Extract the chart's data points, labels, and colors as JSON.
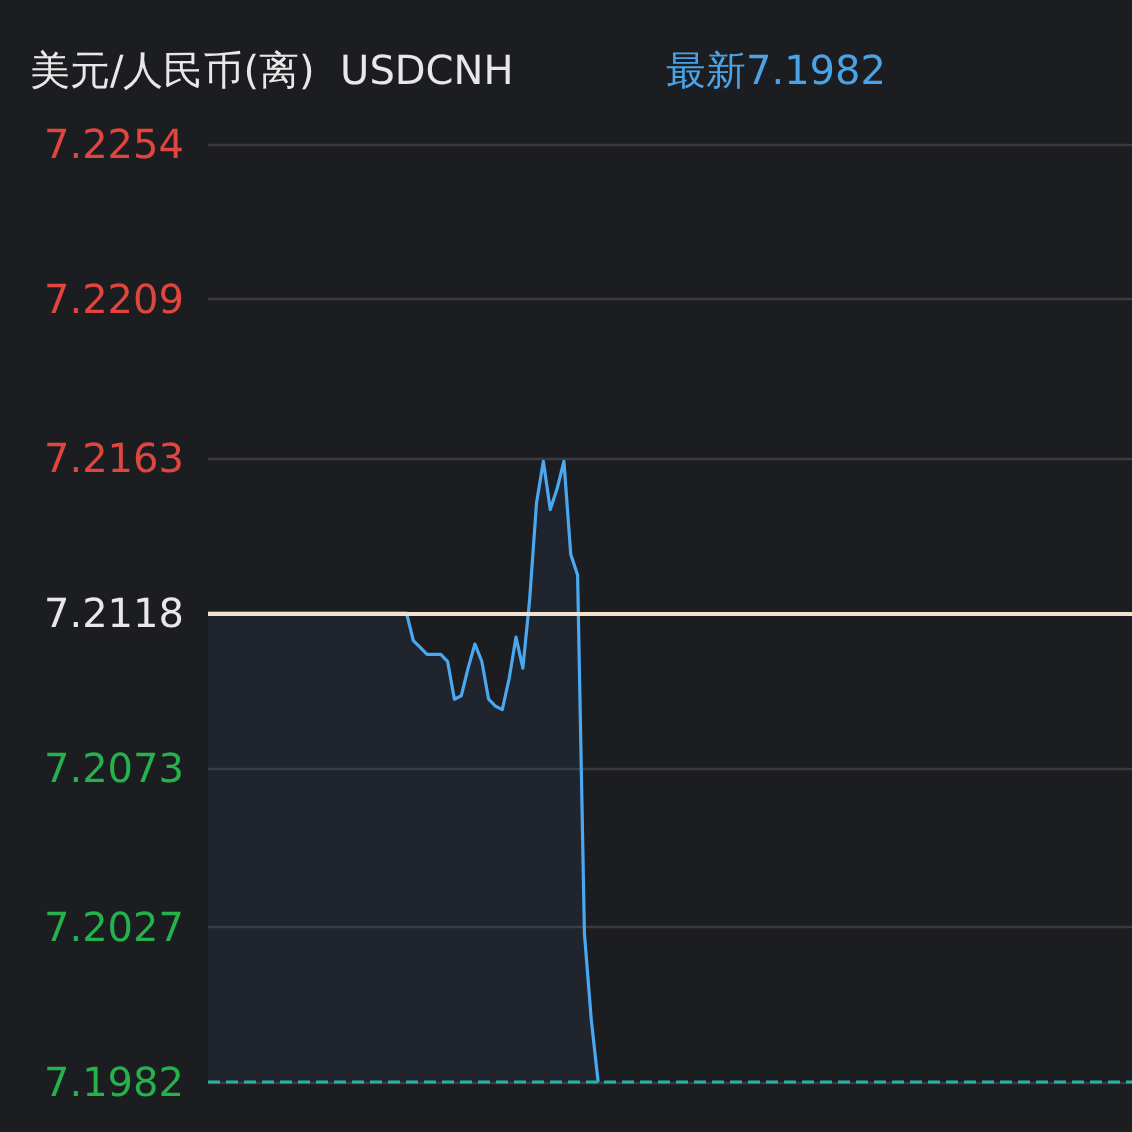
{
  "chart_data": {
    "type": "area",
    "title": "美元/人民币(离)  USDCNH",
    "subtitle": "最新7.1982",
    "categories": [
      null,
      null,
      null,
      null,
      null,
      null,
      null,
      null,
      null,
      null,
      null,
      null,
      null,
      null,
      null,
      null,
      null,
      null,
      null,
      null,
      null,
      null,
      null,
      null,
      null,
      null,
      null,
      null,
      null,
      null,
      null,
      null,
      null,
      null,
      null,
      null,
      null,
      null,
      null,
      null,
      null,
      null,
      null,
      null,
      null,
      null,
      null,
      null,
      null,
      null,
      null,
      null,
      null,
      null,
      null,
      null,
      null,
      null,
      null,
      null,
      null,
      null,
      null,
      null,
      null,
      null,
      null,
      null,
      null,
      null,
      null,
      null,
      null,
      null,
      null,
      null,
      null,
      null,
      null,
      null,
      null,
      null,
      null,
      null,
      null,
      null,
      null,
      null,
      null,
      null,
      null,
      null,
      null,
      null,
      null,
      null,
      null,
      null,
      null,
      null,
      null,
      null,
      null,
      null,
      null,
      null,
      null,
      null,
      null,
      null,
      null,
      null,
      null,
      null,
      null,
      null,
      null,
      null,
      null,
      null,
      null,
      null,
      null,
      null,
      null,
      null,
      null,
      null,
      null,
      null,
      null,
      null,
      null,
      null,
      null,
      null
    ],
    "series": [
      {
        "color": "#4aa8f0",
        "values": [
          7.2118,
          7.2118,
          7.2118,
          7.2118,
          7.2118,
          7.2118,
          7.2118,
          7.2118,
          7.2118,
          7.2118,
          7.2118,
          7.2118,
          7.2118,
          7.2118,
          7.2118,
          7.2118,
          7.2118,
          7.2118,
          7.2118,
          7.2118,
          7.2118,
          7.2118,
          7.2118,
          7.2118,
          7.2118,
          7.2118,
          7.2118,
          7.2118,
          7.2118,
          7.2118,
          7.211,
          7.2108,
          7.2106,
          7.2106,
          7.2106,
          7.2104,
          7.2093,
          7.2094,
          7.2102,
          7.2109,
          7.2104,
          7.2093,
          7.2091,
          7.209,
          7.2099,
          7.2111,
          7.2102,
          7.2122,
          7.215,
          7.2162,
          7.2148,
          7.2154,
          7.2162,
          7.2135,
          7.2129,
          7.2025,
          7.2,
          7.1982,
          null,
          null,
          null,
          null,
          null,
          null,
          null,
          null,
          null,
          null,
          null,
          null,
          null,
          null,
          null,
          null,
          null,
          null,
          null,
          null,
          null,
          null,
          null,
          null,
          null,
          null,
          null,
          null,
          null,
          null,
          null,
          null,
          null,
          null,
          null,
          null,
          null,
          null,
          null,
          null,
          null,
          null,
          null,
          null,
          null,
          null,
          null,
          null,
          null,
          null,
          null,
          null,
          null,
          null,
          null,
          null,
          null,
          null,
          null,
          null,
          null,
          null,
          null,
          null,
          null,
          null,
          null,
          null,
          null,
          null,
          null,
          null,
          null,
          null,
          null,
          null,
          null,
          null
        ]
      }
    ],
    "ylim": [
      7.1982,
      7.2254
    ],
    "yticks": [
      7.1982,
      7.2027,
      7.2073,
      7.2118,
      7.2163,
      7.2209,
      7.2254
    ],
    "ref_lines": [
      {
        "axis": "y",
        "value": 7.2118,
        "color": "#efe3cf",
        "line_style": "solid"
      },
      {
        "axis": "y",
        "value": 7.1982,
        "color": "#27b3a6",
        "line_style": "dashed"
      }
    ],
    "grid": "y",
    "line_style": "solid",
    "tick_labels": "y"
  }
}
